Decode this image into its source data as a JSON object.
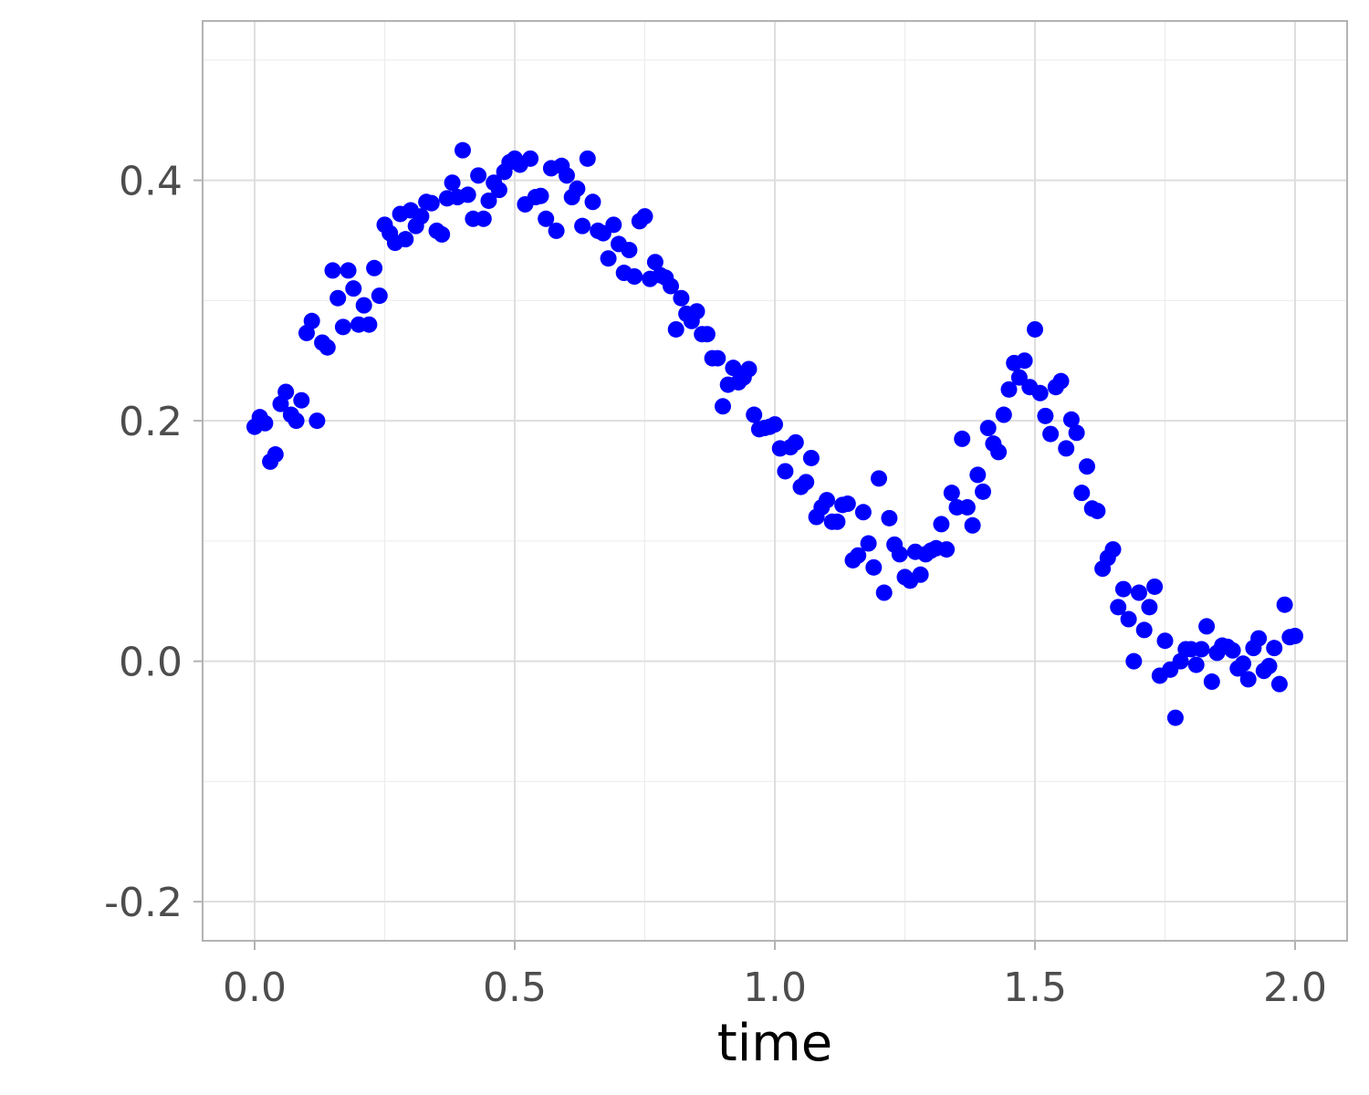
{
  "chart_data": {
    "type": "scatter",
    "title": "",
    "xlabel": "time",
    "ylabel": "",
    "xlim": [
      -0.1,
      2.1
    ],
    "ylim": [
      -0.2325,
      0.5325
    ],
    "x_ticks": [
      0.0,
      0.5,
      1.0,
      1.5,
      2.0
    ],
    "x_tick_labels": [
      "0.0",
      "0.5",
      "1.0",
      "1.5",
      "2.0"
    ],
    "y_ticks": [
      -0.2,
      0.0,
      0.2,
      0.4
    ],
    "y_tick_labels": [
      "-0.2",
      "0.0",
      "0.2",
      "0.4"
    ],
    "x_minor_ticks": [
      0.25,
      0.75,
      1.25,
      1.75
    ],
    "y_minor_ticks": [
      -0.1,
      0.1,
      0.3,
      0.5
    ],
    "grid": true,
    "legend": "none",
    "point_color": "#0000ff",
    "series": [
      {
        "x": [
          0.0,
          0.01,
          0.02,
          0.03,
          0.04,
          0.05,
          0.06,
          0.07,
          0.08,
          0.09,
          0.1,
          0.11,
          0.12,
          0.13,
          0.14,
          0.15,
          0.16,
          0.17,
          0.18,
          0.19,
          0.2,
          0.21,
          0.22,
          0.23,
          0.24,
          0.25,
          0.26,
          0.27,
          0.28,
          0.29,
          0.3,
          0.31,
          0.32,
          0.33,
          0.34,
          0.35,
          0.36,
          0.37,
          0.38,
          0.39,
          0.4,
          0.41,
          0.42,
          0.43,
          0.44,
          0.45,
          0.46,
          0.47,
          0.48,
          0.49,
          0.5,
          0.51,
          0.52,
          0.53,
          0.54,
          0.55,
          0.56,
          0.57,
          0.58,
          0.59,
          0.6,
          0.61,
          0.62,
          0.63,
          0.64,
          0.65,
          0.66,
          0.67,
          0.68,
          0.69,
          0.7,
          0.71,
          0.72,
          0.73,
          0.74,
          0.75,
          0.76,
          0.77,
          0.78,
          0.79,
          0.8,
          0.81,
          0.82,
          0.83,
          0.84,
          0.85,
          0.86,
          0.87,
          0.88,
          0.89,
          0.9,
          0.91,
          0.92,
          0.93,
          0.94,
          0.95,
          0.96,
          0.97,
          0.98,
          0.99,
          1.0,
          1.01,
          1.02,
          1.03,
          1.04,
          1.05,
          1.06,
          1.07,
          1.08,
          1.09,
          1.1,
          1.11,
          1.12,
          1.13,
          1.14,
          1.15,
          1.16,
          1.17,
          1.18,
          1.19,
          1.2,
          1.21,
          1.22,
          1.23,
          1.24,
          1.25,
          1.26,
          1.27,
          1.28,
          1.29,
          1.3,
          1.31,
          1.32,
          1.33,
          1.34,
          1.35,
          1.36,
          1.37,
          1.38,
          1.39,
          1.4,
          1.41,
          1.42,
          1.43,
          1.44,
          1.45,
          1.46,
          1.47,
          1.48,
          1.49,
          1.5,
          1.51,
          1.52,
          1.53,
          1.54,
          1.55,
          1.56,
          1.57,
          1.58,
          1.59,
          1.6,
          1.61,
          1.62,
          1.63,
          1.64,
          1.65,
          1.66,
          1.67,
          1.68,
          1.69,
          1.7,
          1.71,
          1.72,
          1.73,
          1.74,
          1.75,
          1.76,
          1.77,
          1.78,
          1.79,
          1.8,
          1.81,
          1.82,
          1.83,
          1.84,
          1.85,
          1.86,
          1.87,
          1.88,
          1.89,
          1.9,
          1.91,
          1.92,
          1.93,
          1.94,
          1.95,
          1.96,
          1.97,
          1.98,
          1.99,
          2.0
        ],
        "y": [
          0.195,
          0.203,
          0.198,
          0.166,
          0.172,
          0.214,
          0.224,
          0.205,
          0.2,
          0.217,
          0.273,
          0.283,
          0.2,
          0.265,
          0.261,
          0.325,
          0.302,
          0.278,
          0.325,
          0.31,
          0.28,
          0.296,
          0.28,
          0.327,
          0.304,
          0.363,
          0.356,
          0.348,
          0.372,
          0.351,
          0.375,
          0.362,
          0.37,
          0.382,
          0.381,
          0.358,
          0.355,
          0.385,
          0.398,
          0.386,
          0.425,
          0.388,
          0.368,
          0.404,
          0.368,
          0.383,
          0.398,
          0.392,
          0.407,
          0.415,
          0.418,
          0.413,
          0.38,
          0.418,
          0.386,
          0.387,
          0.368,
          0.41,
          0.358,
          0.412,
          0.404,
          0.386,
          0.393,
          0.362,
          0.418,
          0.382,
          0.358,
          0.356,
          0.335,
          0.363,
          0.347,
          0.323,
          0.342,
          0.32,
          0.366,
          0.37,
          0.318,
          0.332,
          0.321,
          0.319,
          0.312,
          0.276,
          0.302,
          0.289,
          0.283,
          0.291,
          0.272,
          0.272,
          0.252,
          0.252,
          0.212,
          0.23,
          0.244,
          0.232,
          0.236,
          0.243,
          0.205,
          0.193,
          0.194,
          0.195,
          0.197,
          0.177,
          0.158,
          0.178,
          0.182,
          0.145,
          0.149,
          0.169,
          0.12,
          0.128,
          0.134,
          0.116,
          0.116,
          0.13,
          0.131,
          0.084,
          0.088,
          0.124,
          0.098,
          0.078,
          0.152,
          0.057,
          0.119,
          0.097,
          0.089,
          0.07,
          0.067,
          0.091,
          0.072,
          0.089,
          0.092,
          0.094,
          0.114,
          0.093,
          0.14,
          0.128,
          0.185,
          0.128,
          0.113,
          0.155,
          0.141,
          0.194,
          0.181,
          0.174,
          0.205,
          0.226,
          0.248,
          0.236,
          0.25,
          0.228,
          0.276,
          0.223,
          0.204,
          0.189,
          0.228,
          0.233,
          0.177,
          0.201,
          0.19,
          0.14,
          0.162,
          0.127,
          0.125,
          0.077,
          0.086,
          0.093,
          0.045,
          0.06,
          0.035,
          0.0,
          0.057,
          0.026,
          0.045,
          0.062,
          -0.012,
          0.017,
          -0.007,
          -0.047,
          0.0,
          0.01,
          0.01,
          -0.003,
          0.01,
          0.029,
          -0.017,
          0.007,
          0.013,
          0.012,
          0.009,
          -0.006,
          -0.002,
          -0.015,
          0.011,
          0.019,
          -0.008,
          -0.004,
          0.011,
          -0.019,
          0.047,
          0.02,
          0.021
        ]
      }
    ]
  }
}
